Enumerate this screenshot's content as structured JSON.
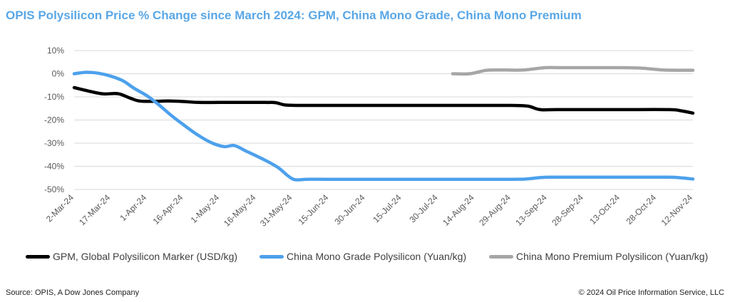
{
  "title": "OPIS  Polysilicon Price %  Change since March 2024: GPM, China Mono Grade, China Mono Premium",
  "footer": {
    "source": "Source: OPIS, A Dow Jones Company",
    "copyright": "© 2024 Oil Price Information Service, LLC"
  },
  "chart_data": {
    "type": "line",
    "title": "OPIS  Polysilicon Price %  Change since March 2024: GPM, China Mono Grade, China Mono Premium",
    "xlabel": "",
    "ylabel": "",
    "ylim": [
      -50,
      10
    ],
    "y_ticks": [
      10,
      0,
      -10,
      -20,
      -30,
      -40,
      -50
    ],
    "y_tick_labels": [
      "10%",
      "0%",
      "-10%",
      "-20%",
      "-30%",
      "-40%",
      "-50%"
    ],
    "x_range": [
      "2024-03-02",
      "2024-11-12"
    ],
    "x_ticks": [
      "2024-03-02",
      "2024-03-17",
      "2024-04-01",
      "2024-04-16",
      "2024-05-01",
      "2024-05-16",
      "2024-05-31",
      "2024-06-15",
      "2024-06-30",
      "2024-07-15",
      "2024-07-30",
      "2024-08-14",
      "2024-08-29",
      "2024-09-13",
      "2024-09-28",
      "2024-10-13",
      "2024-10-28",
      "2024-11-12"
    ],
    "x_tick_labels": [
      "2-Mar-24",
      "17-Mar-24",
      "1-Apr-24",
      "16-Apr-24",
      "1-May-24",
      "16-May-24",
      "31-May-24",
      "15-Jun-24",
      "30-Jun-24",
      "15-Jul-24",
      "30-Jul-24",
      "14-Aug-24",
      "29-Aug-24",
      "13-Sep-24",
      "28-Sep-24",
      "13-Oct-24",
      "28-Oct-24",
      "12-Nov-24"
    ],
    "grid": true,
    "legend_position": "bottom",
    "series": [
      {
        "name": "GPM, Global Polysilicon Marker (USD/kg)",
        "color": "#000000",
        "points": [
          [
            "2024-03-02",
            -6.0
          ],
          [
            "2024-03-08",
            -7.5
          ],
          [
            "2024-03-14",
            -8.7
          ],
          [
            "2024-03-20",
            -8.6
          ],
          [
            "2024-03-25",
            -10.5
          ],
          [
            "2024-03-29",
            -11.8
          ],
          [
            "2024-04-04",
            -11.9
          ],
          [
            "2024-04-10",
            -11.8
          ],
          [
            "2024-04-16",
            -12.0
          ],
          [
            "2024-04-22",
            -12.4
          ],
          [
            "2024-05-01",
            -12.4
          ],
          [
            "2024-05-10",
            -12.4
          ],
          [
            "2024-05-20",
            -12.4
          ],
          [
            "2024-05-24",
            -12.5
          ],
          [
            "2024-05-28",
            -13.5
          ],
          [
            "2024-06-03",
            -13.7
          ],
          [
            "2024-06-15",
            -13.7
          ],
          [
            "2024-07-15",
            -13.7
          ],
          [
            "2024-08-14",
            -13.7
          ],
          [
            "2024-08-29",
            -13.7
          ],
          [
            "2024-09-05",
            -14.0
          ],
          [
            "2024-09-10",
            -15.5
          ],
          [
            "2024-09-17",
            -15.5
          ],
          [
            "2024-10-13",
            -15.5
          ],
          [
            "2024-11-02",
            -15.5
          ],
          [
            "2024-11-07",
            -16.0
          ],
          [
            "2024-11-12",
            -17.0
          ]
        ]
      },
      {
        "name": "China Mono Grade Polysilicon (Yuan/kg)",
        "color": "#4da1ec",
        "points": [
          [
            "2024-03-02",
            0.0
          ],
          [
            "2024-03-07",
            0.6
          ],
          [
            "2024-03-12",
            0.2
          ],
          [
            "2024-03-17",
            -1.0
          ],
          [
            "2024-03-22",
            -3.0
          ],
          [
            "2024-03-27",
            -6.5
          ],
          [
            "2024-04-01",
            -9.5
          ],
          [
            "2024-04-06",
            -13.5
          ],
          [
            "2024-04-11",
            -18.0
          ],
          [
            "2024-04-16",
            -22.0
          ],
          [
            "2024-04-22",
            -26.5
          ],
          [
            "2024-04-28",
            -30.0
          ],
          [
            "2024-05-03",
            -31.5
          ],
          [
            "2024-05-07",
            -31.0
          ],
          [
            "2024-05-12",
            -33.5
          ],
          [
            "2024-05-19",
            -37.0
          ],
          [
            "2024-05-25",
            -40.5
          ],
          [
            "2024-05-29",
            -44.0
          ],
          [
            "2024-06-01",
            -45.8
          ],
          [
            "2024-06-06",
            -45.6
          ],
          [
            "2024-06-15",
            -45.6
          ],
          [
            "2024-07-30",
            -45.6
          ],
          [
            "2024-08-29",
            -45.6
          ],
          [
            "2024-09-04",
            -45.5
          ],
          [
            "2024-09-11",
            -44.8
          ],
          [
            "2024-09-18",
            -44.7
          ],
          [
            "2024-10-28",
            -44.7
          ],
          [
            "2024-11-05",
            -44.8
          ],
          [
            "2024-11-12",
            -45.5
          ]
        ]
      },
      {
        "name": "China Mono Premium Polysilicon (Yuan/kg)",
        "color": "#a6a6a6",
        "points": [
          [
            "2024-08-05",
            0.0
          ],
          [
            "2024-08-12",
            0.0
          ],
          [
            "2024-08-19",
            1.5
          ],
          [
            "2024-08-26",
            1.6
          ],
          [
            "2024-09-03",
            1.6
          ],
          [
            "2024-09-12",
            2.6
          ],
          [
            "2024-09-20",
            2.6
          ],
          [
            "2024-10-13",
            2.6
          ],
          [
            "2024-10-22",
            2.4
          ],
          [
            "2024-10-31",
            1.6
          ],
          [
            "2024-11-12",
            1.5
          ]
        ]
      }
    ]
  }
}
